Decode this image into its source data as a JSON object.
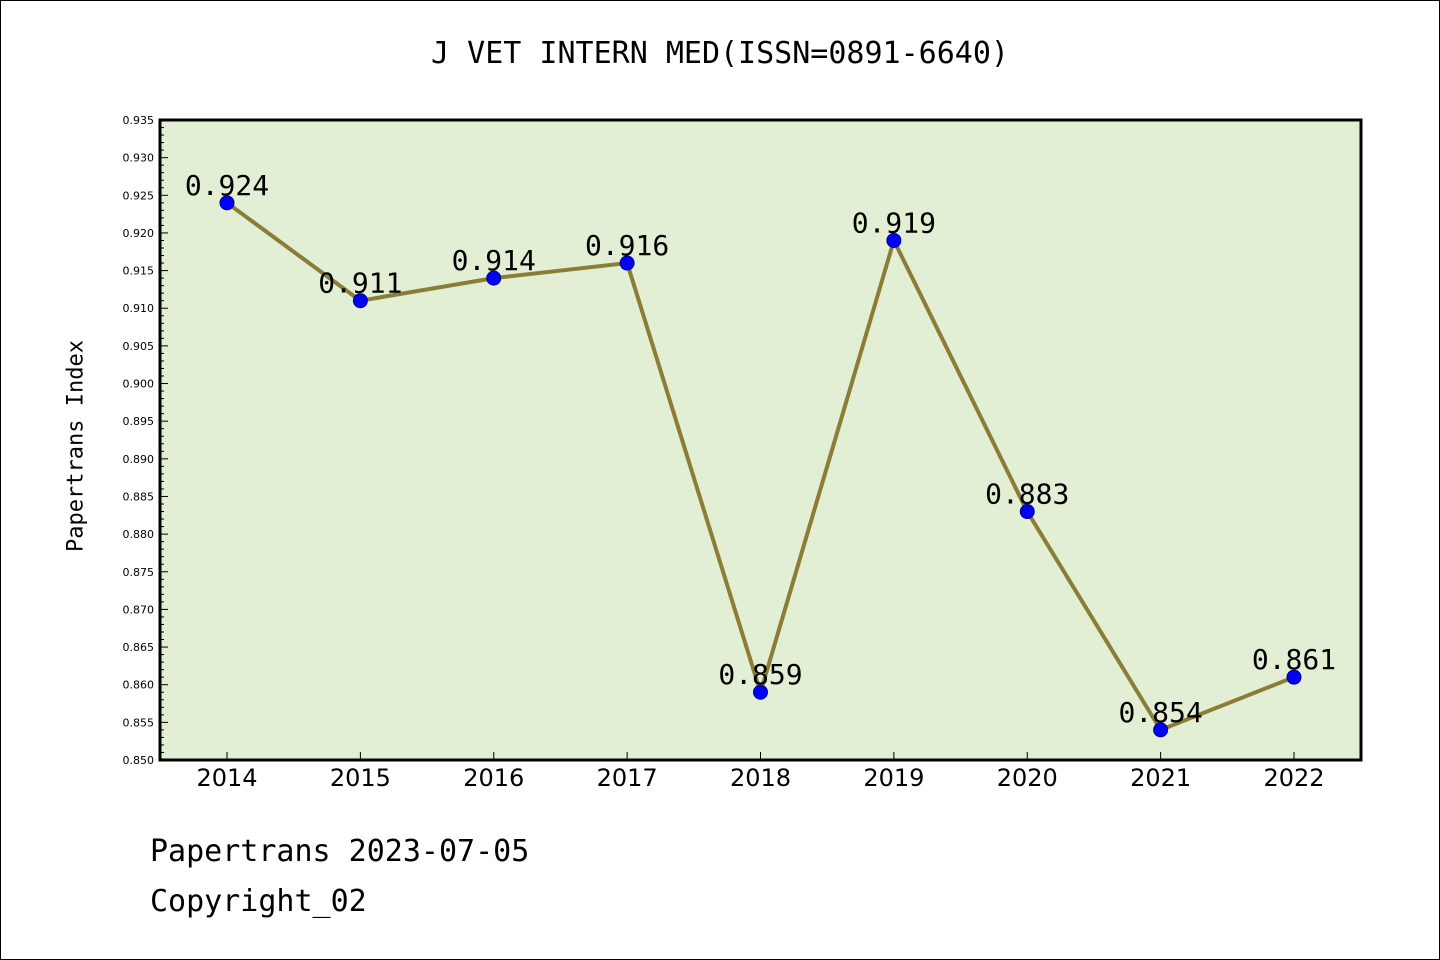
{
  "chart_data": {
    "type": "line",
    "title": "J VET INTERN MED(ISSN=0891-6640)",
    "xlabel": "",
    "ylabel": "Papertrans Index",
    "categories": [
      "2014",
      "2015",
      "2016",
      "2017",
      "2018",
      "2019",
      "2020",
      "2021",
      "2022"
    ],
    "values": [
      0.924,
      0.911,
      0.914,
      0.916,
      0.859,
      0.919,
      0.883,
      0.854,
      0.861
    ],
    "data_labels": [
      "0.924",
      "0.911",
      "0.914",
      "0.916",
      "0.859",
      "0.919",
      "0.883",
      "0.854",
      "0.861"
    ],
    "ylim": [
      0.85,
      0.935
    ],
    "ytick_step": 0.005,
    "grid": false,
    "colors": {
      "plot_bg": "#e2efd5",
      "line": "#8b7d35",
      "marker": "#0000ff"
    }
  },
  "footer": {
    "line1": "Papertrans 2023-07-05",
    "line2": "Copyright_02"
  }
}
